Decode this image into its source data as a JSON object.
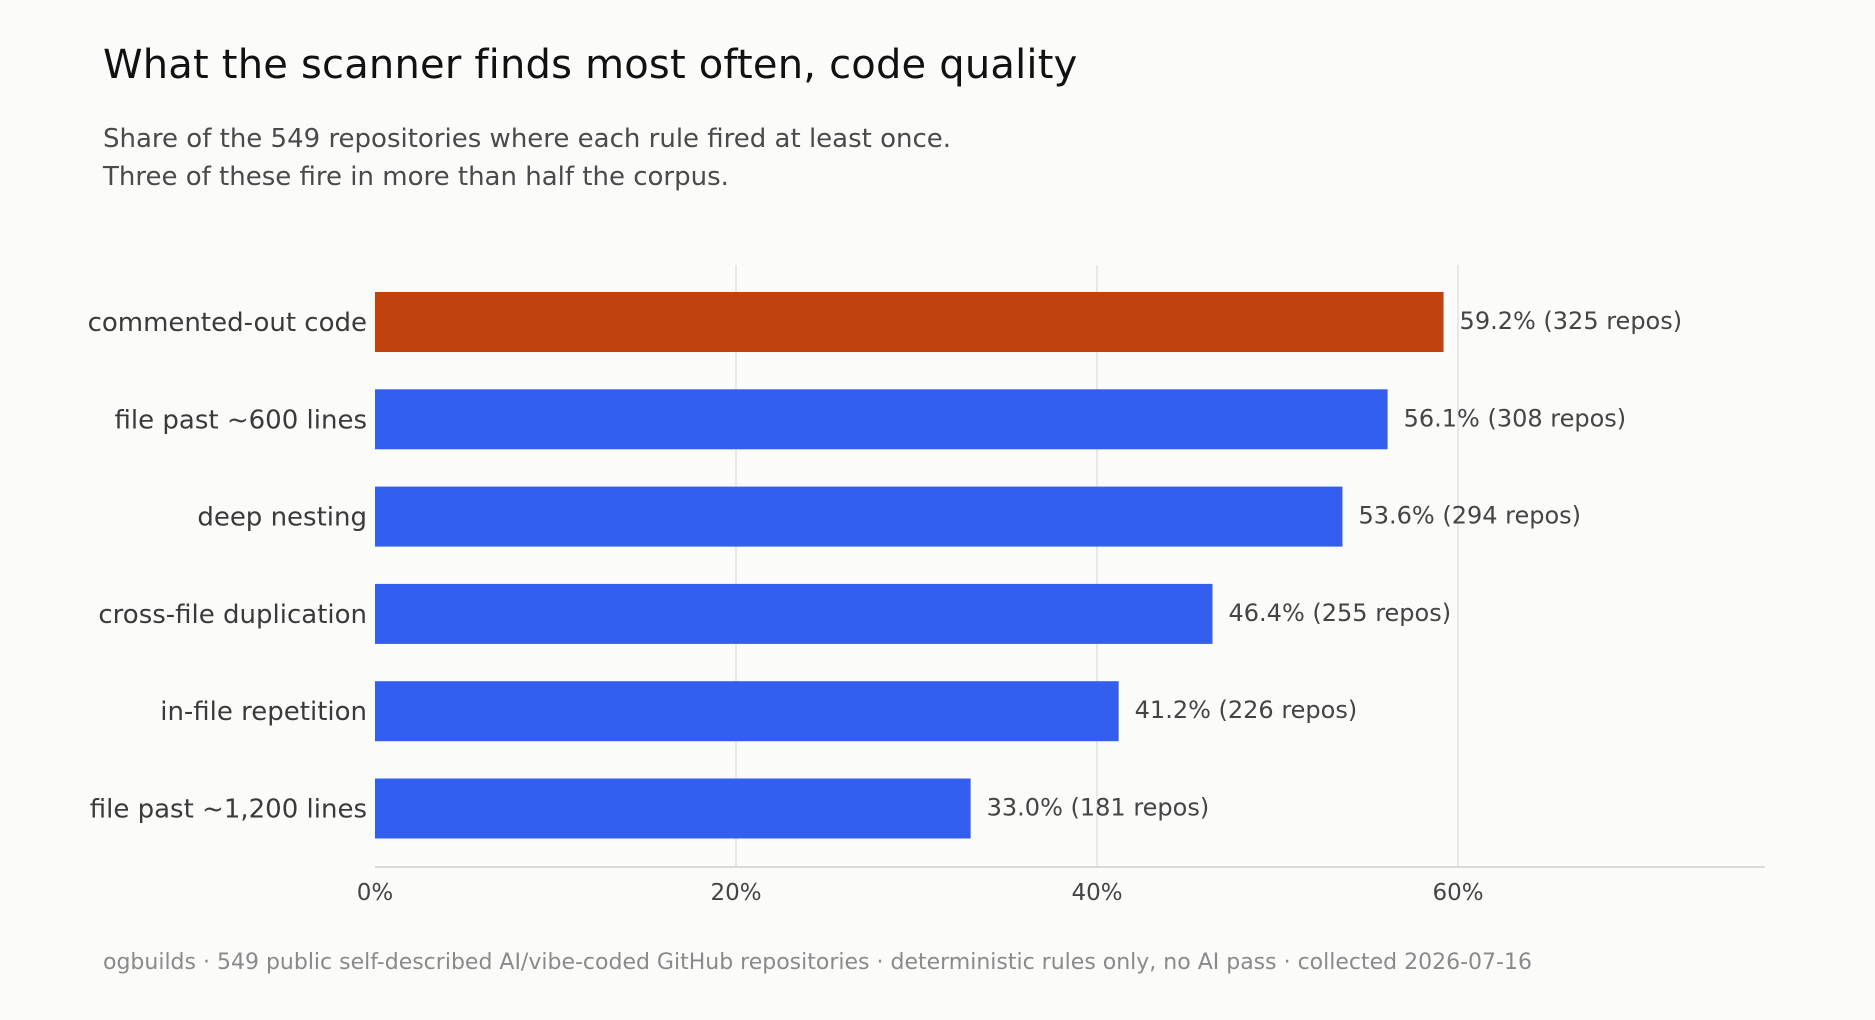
{
  "title": "What the scanner finds most often, code quality",
  "subtitle": {
    "line1": "Share of the 549 repositories where each rule fired at least once.",
    "line2": "Three of these fire in more than half the corpus."
  },
  "footer": "ogbuilds · 549 public self-described AI/vibe-coded GitHub repositories · deterministic rules only, no AI pass · collected 2026-07-16",
  "colors": {
    "highlight": "#c1410f",
    "bar": "#335ff0",
    "grid": "#e2e2e2",
    "axis": "#d0d0d0",
    "label": "#3a3a3a",
    "value_label": "#444444"
  },
  "chart_data": {
    "type": "bar",
    "orientation": "horizontal",
    "categories": [
      "commented-out code",
      "file past ~600 lines",
      "deep nesting",
      "cross-file duplication",
      "in-file repetition",
      "file past ~1,200 lines"
    ],
    "values": [
      59.2,
      56.1,
      53.6,
      46.4,
      41.2,
      33.0
    ],
    "data_labels": [
      "59.2%  (325 repos)",
      "56.1%  (308 repos)",
      "53.6%  (294 repos)",
      "46.4%  (255 repos)",
      "41.2%  (226 repos)",
      "33.0%  (181 repos)"
    ],
    "highlight_index": 0,
    "xlim": [
      0,
      77
    ],
    "xticks": [
      0,
      20,
      40,
      60
    ],
    "xtick_labels": [
      "0%",
      "20%",
      "40%",
      "60%"
    ],
    "grid": true,
    "legend": "none"
  }
}
